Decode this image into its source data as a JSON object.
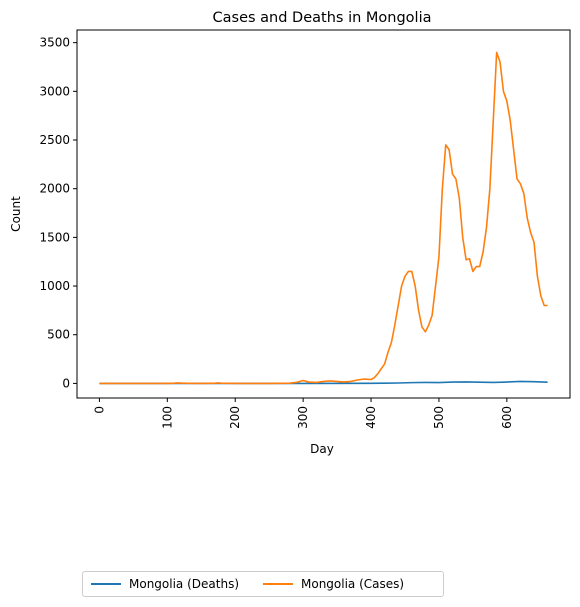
{
  "chart_data": {
    "type": "line",
    "title": "Cases and Deaths in Mongolia",
    "xlabel": "Day",
    "ylabel": "Count",
    "xlim": [
      -33,
      693
    ],
    "ylim": [
      -150,
      3630
    ],
    "x_ticks": [
      0,
      100,
      200,
      300,
      400,
      500,
      600
    ],
    "y_ticks": [
      0,
      500,
      1000,
      1500,
      2000,
      2500,
      3000,
      3500
    ],
    "x_tick_labels": [
      "0",
      "100",
      "200",
      "300",
      "400",
      "500",
      "600"
    ],
    "y_tick_labels": [
      "0",
      "500",
      "1000",
      "1500",
      "2000",
      "2500",
      "3000",
      "3500"
    ],
    "legend_position": "below",
    "series": [
      {
        "name": "Mongolia (Deaths)",
        "color": "#1f77b4",
        "x": [
          0,
          100,
          200,
          300,
          400,
          420,
          440,
          460,
          480,
          500,
          520,
          540,
          560,
          580,
          600,
          620,
          640,
          660
        ],
        "y": [
          0,
          0,
          0,
          0,
          1,
          2,
          4,
          8,
          10,
          9,
          14,
          15,
          12,
          10,
          14,
          20,
          18,
          12
        ]
      },
      {
        "name": "Mongolia (Cases)",
        "color": "#ff7f0e",
        "x": [
          0,
          50,
          100,
          110,
          115,
          120,
          130,
          150,
          170,
          175,
          180,
          200,
          250,
          280,
          290,
          300,
          305,
          310,
          320,
          330,
          340,
          350,
          360,
          370,
          380,
          390,
          400,
          405,
          410,
          420,
          425,
          430,
          435,
          440,
          445,
          450,
          455,
          460,
          465,
          470,
          475,
          480,
          485,
          490,
          495,
          500,
          505,
          510,
          515,
          520,
          525,
          530,
          535,
          540,
          545,
          550,
          555,
          560,
          565,
          570,
          575,
          580,
          585,
          590,
          595,
          600,
          605,
          610,
          615,
          620,
          625,
          630,
          635,
          640,
          645,
          650,
          655,
          660
        ],
        "y": [
          0,
          0,
          0,
          2,
          5,
          3,
          1,
          0,
          2,
          5,
          2,
          0,
          0,
          2,
          10,
          30,
          20,
          12,
          10,
          20,
          25,
          20,
          15,
          20,
          35,
          45,
          40,
          60,
          100,
          200,
          320,
          420,
          600,
          800,
          1000,
          1100,
          1150,
          1150,
          1000,
          750,
          580,
          530,
          600,
          700,
          1000,
          1300,
          2000,
          2450,
          2400,
          2150,
          2100,
          1900,
          1500,
          1270,
          1280,
          1150,
          1200,
          1200,
          1350,
          1600,
          2000,
          2700,
          3400,
          3300,
          3000,
          2900,
          2700,
          2400,
          2100,
          2050,
          1950,
          1700,
          1550,
          1450,
          1100,
          900,
          800,
          800
        ]
      }
    ]
  }
}
